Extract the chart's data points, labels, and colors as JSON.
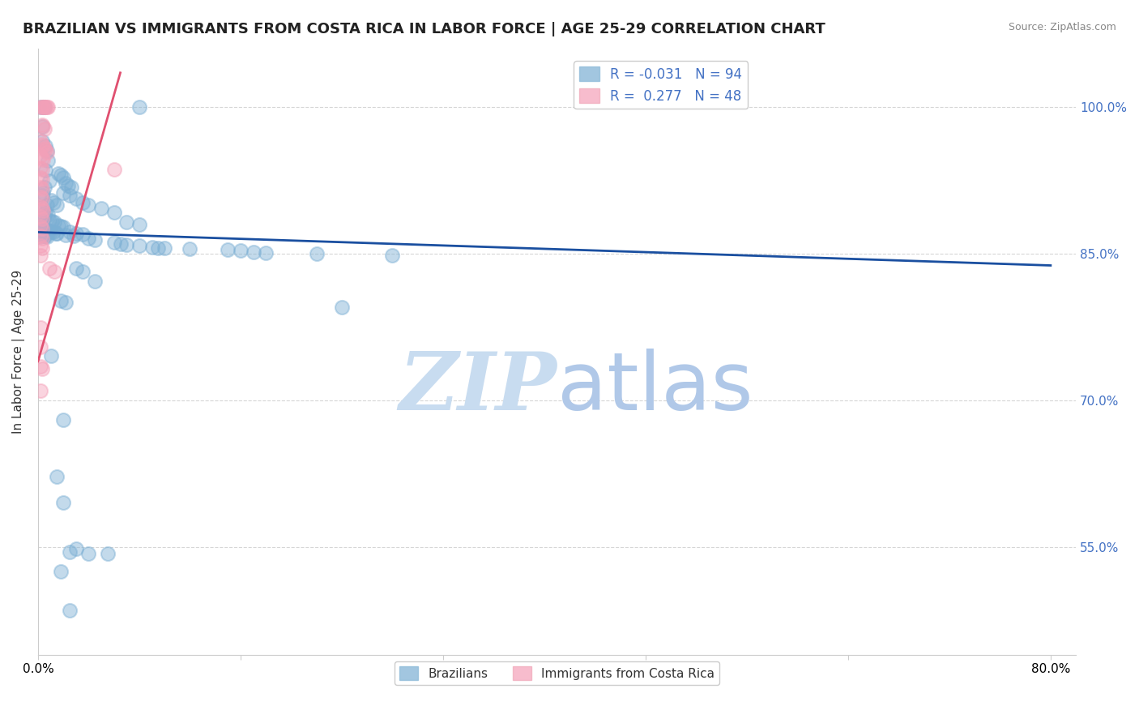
{
  "title": "BRAZILIAN VS IMMIGRANTS FROM COSTA RICA IN LABOR FORCE | AGE 25-29 CORRELATION CHART",
  "source": "Source: ZipAtlas.com",
  "ylabel": "In Labor Force | Age 25-29",
  "ytick_labels": [
    "100.0%",
    "85.0%",
    "70.0%",
    "55.0%"
  ],
  "ytick_values": [
    1.0,
    0.85,
    0.7,
    0.55
  ],
  "xtick_positions": [
    0.0,
    0.16,
    0.32,
    0.48,
    0.64,
    0.8
  ],
  "xmin": 0.0,
  "xmax": 0.82,
  "ymin": 0.44,
  "ymax": 1.06,
  "blue_line": {
    "x": [
      0.0,
      0.8
    ],
    "y": [
      0.872,
      0.838
    ]
  },
  "pink_line": {
    "x": [
      0.0,
      0.065
    ],
    "y": [
      0.74,
      1.035
    ]
  },
  "blue_dots": [
    [
      0.002,
      1.0
    ],
    [
      0.005,
      1.0
    ],
    [
      0.004,
      1.0
    ],
    [
      0.003,
      0.98
    ],
    [
      0.003,
      0.965
    ],
    [
      0.006,
      0.96
    ],
    [
      0.007,
      0.955
    ],
    [
      0.008,
      0.945
    ],
    [
      0.006,
      0.935
    ],
    [
      0.009,
      0.925
    ],
    [
      0.005,
      0.918
    ],
    [
      0.004,
      0.912
    ],
    [
      0.003,
      0.91
    ],
    [
      0.01,
      0.905
    ],
    [
      0.012,
      0.902
    ],
    [
      0.015,
      0.9
    ],
    [
      0.007,
      0.9
    ],
    [
      0.002,
      0.897
    ],
    [
      0.006,
      0.892
    ],
    [
      0.008,
      0.89
    ],
    [
      0.005,
      0.888
    ],
    [
      0.003,
      0.886
    ],
    [
      0.009,
      0.884
    ],
    [
      0.011,
      0.883
    ],
    [
      0.013,
      0.882
    ],
    [
      0.004,
      0.88
    ],
    [
      0.016,
      0.879
    ],
    [
      0.018,
      0.878
    ],
    [
      0.02,
      0.877
    ],
    [
      0.002,
      0.876
    ],
    [
      0.003,
      0.875
    ],
    [
      0.004,
      0.875
    ],
    [
      0.005,
      0.875
    ],
    [
      0.006,
      0.874
    ],
    [
      0.007,
      0.874
    ],
    [
      0.008,
      0.873
    ],
    [
      0.009,
      0.873
    ],
    [
      0.01,
      0.872
    ],
    [
      0.012,
      0.872
    ],
    [
      0.014,
      0.871
    ],
    [
      0.015,
      0.871
    ],
    [
      0.001,
      0.871
    ],
    [
      0.002,
      0.87
    ],
    [
      0.003,
      0.869
    ],
    [
      0.004,
      0.869
    ],
    [
      0.005,
      0.868
    ],
    [
      0.006,
      0.868
    ],
    [
      0.007,
      0.867
    ],
    [
      0.001,
      0.867
    ],
    [
      0.025,
      0.872
    ],
    [
      0.03,
      0.871
    ],
    [
      0.035,
      0.87
    ],
    [
      0.022,
      0.869
    ],
    [
      0.028,
      0.868
    ],
    [
      0.04,
      0.866
    ],
    [
      0.045,
      0.864
    ],
    [
      0.06,
      0.862
    ],
    [
      0.065,
      0.86
    ],
    [
      0.07,
      0.859
    ],
    [
      0.08,
      0.858
    ],
    [
      0.09,
      0.857
    ],
    [
      0.095,
      0.856
    ],
    [
      0.1,
      0.856
    ],
    [
      0.12,
      0.855
    ],
    [
      0.15,
      0.854
    ],
    [
      0.16,
      0.853
    ],
    [
      0.17,
      0.852
    ],
    [
      0.18,
      0.851
    ],
    [
      0.22,
      0.85
    ],
    [
      0.28,
      0.848
    ],
    [
      0.016,
      0.932
    ],
    [
      0.018,
      0.93
    ],
    [
      0.02,
      0.928
    ],
    [
      0.022,
      0.922
    ],
    [
      0.024,
      0.92
    ],
    [
      0.026,
      0.918
    ],
    [
      0.02,
      0.912
    ],
    [
      0.025,
      0.91
    ],
    [
      0.03,
      0.906
    ],
    [
      0.035,
      0.902
    ],
    [
      0.04,
      0.9
    ],
    [
      0.05,
      0.896
    ],
    [
      0.06,
      0.892
    ],
    [
      0.07,
      0.882
    ],
    [
      0.08,
      0.88
    ],
    [
      0.24,
      0.795
    ],
    [
      0.03,
      0.835
    ],
    [
      0.035,
      0.832
    ],
    [
      0.045,
      0.822
    ],
    [
      0.018,
      0.802
    ],
    [
      0.022,
      0.8
    ],
    [
      0.02,
      0.68
    ],
    [
      0.015,
      0.622
    ],
    [
      0.02,
      0.596
    ],
    [
      0.03,
      0.548
    ],
    [
      0.025,
      0.545
    ],
    [
      0.04,
      0.543
    ],
    [
      0.055,
      0.543
    ],
    [
      0.018,
      0.525
    ],
    [
      0.025,
      0.485
    ],
    [
      0.08,
      1.0
    ],
    [
      0.01,
      0.746
    ]
  ],
  "pink_dots": [
    [
      0.002,
      1.0
    ],
    [
      0.003,
      1.0
    ],
    [
      0.004,
      1.0
    ],
    [
      0.005,
      1.0
    ],
    [
      0.006,
      1.0
    ],
    [
      0.007,
      1.0
    ],
    [
      0.008,
      1.0
    ],
    [
      0.003,
      0.982
    ],
    [
      0.004,
      0.98
    ],
    [
      0.005,
      0.978
    ],
    [
      0.002,
      0.965
    ],
    [
      0.003,
      0.962
    ],
    [
      0.004,
      0.96
    ],
    [
      0.005,
      0.958
    ],
    [
      0.006,
      0.956
    ],
    [
      0.007,
      0.954
    ],
    [
      0.002,
      0.95
    ],
    [
      0.003,
      0.948
    ],
    [
      0.004,
      0.946
    ],
    [
      0.002,
      0.938
    ],
    [
      0.003,
      0.936
    ],
    [
      0.002,
      0.928
    ],
    [
      0.003,
      0.926
    ],
    [
      0.002,
      0.918
    ],
    [
      0.003,
      0.916
    ],
    [
      0.002,
      0.908
    ],
    [
      0.003,
      0.906
    ],
    [
      0.002,
      0.898
    ],
    [
      0.003,
      0.896
    ],
    [
      0.004,
      0.894
    ],
    [
      0.002,
      0.888
    ],
    [
      0.003,
      0.886
    ],
    [
      0.002,
      0.878
    ],
    [
      0.003,
      0.876
    ],
    [
      0.002,
      0.868
    ],
    [
      0.003,
      0.866
    ],
    [
      0.002,
      0.858
    ],
    [
      0.003,
      0.856
    ],
    [
      0.002,
      0.848
    ],
    [
      0.06,
      0.936
    ],
    [
      0.009,
      0.835
    ],
    [
      0.013,
      0.832
    ],
    [
      0.002,
      0.775
    ],
    [
      0.002,
      0.755
    ],
    [
      0.002,
      0.735
    ],
    [
      0.003,
      0.732
    ],
    [
      0.002,
      0.71
    ]
  ],
  "background_color": "#ffffff",
  "grid_color": "#cccccc",
  "blue_color": "#7bafd4",
  "pink_color": "#f4a0b8",
  "trend_blue": "#1a4fa0",
  "trend_pink": "#e05070",
  "watermark_zip": "ZIP",
  "watermark_atlas": "atlas",
  "watermark_color_zip": "#c8dcf0",
  "watermark_color_atlas": "#b0c8e8",
  "title_fontsize": 13,
  "axis_fontsize": 11
}
